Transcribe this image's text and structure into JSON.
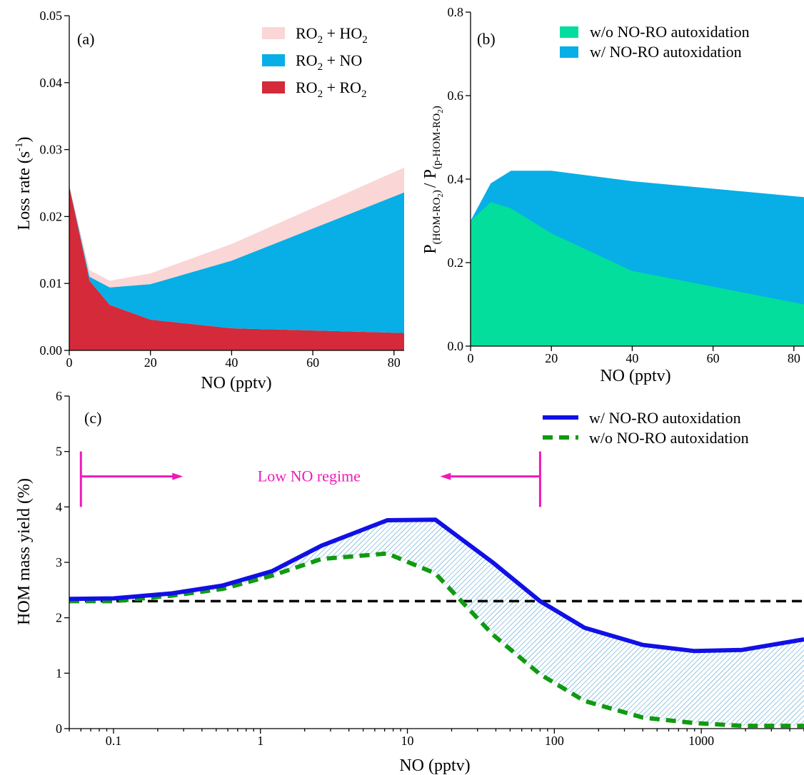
{
  "chart_data": [
    {
      "panel": "(a)",
      "type": "area",
      "stacked": true,
      "xlabel": "NO (pptv)",
      "ylabel": "Loss rate (s",
      "ylabel_sup": "-1",
      "ylabel_close": ")",
      "xlim": [
        0,
        82.5
      ],
      "ylim": [
        0,
        0.05
      ],
      "xticks": [
        0,
        20,
        40,
        60,
        80
      ],
      "xtick_labels": [
        "0",
        "20",
        "40",
        "60",
        "80"
      ],
      "yticks": [
        0,
        0.01,
        0.02,
        0.03,
        0.04,
        0.05
      ],
      "ytick_labels": [
        "0.00",
        "0.01",
        "0.02",
        "0.03",
        "0.04",
        "0.05"
      ],
      "x": [
        0,
        5,
        10,
        20,
        40,
        82.5
      ],
      "series": [
        {
          "name": "RO2 + RO2",
          "label_main": "RO",
          "label_sub": "2",
          "label_mid": " + RO",
          "label_sub2": "2",
          "color": "#d42a3a",
          "values": [
            0.0245,
            0.0104,
            0.0068,
            0.0046,
            0.0033,
            0.0026
          ]
        },
        {
          "name": "RO2 + NO",
          "label_main": "RO",
          "label_sub": "2",
          "label_mid": " + NO",
          "label_sub2": "",
          "color": "#07afe6",
          "values": [
            0.0001,
            0.0006,
            0.0026,
            0.0053,
            0.0101,
            0.021
          ]
        },
        {
          "name": "RO2 + HO2",
          "label_main": "RO",
          "label_sub": "2",
          "label_mid": " + HO",
          "label_sub2": "2",
          "color": "#fbd6d6",
          "values": [
            0.0,
            0.001,
            0.001,
            0.0016,
            0.0025,
            0.0037
          ]
        }
      ],
      "legend_order": [
        2,
        1,
        0
      ],
      "legend": "top-right"
    },
    {
      "panel": "(b)",
      "type": "area",
      "stacked": false,
      "xlabel": "NO (pptv)",
      "ylabel_parts": [
        "P",
        "(HOM-RO",
        "2",
        ")",
        "/ P",
        "(p-HOM-RO",
        "2",
        ")"
      ],
      "xlim": [
        0,
        82.5
      ],
      "ylim": [
        0,
        0.8
      ],
      "xticks": [
        0,
        20,
        40,
        60,
        80
      ],
      "xtick_labels": [
        "0",
        "20",
        "40",
        "60",
        "80"
      ],
      "yticks": [
        0,
        0.2,
        0.4,
        0.6,
        0.8
      ],
      "ytick_labels": [
        "0.0",
        "0.2",
        "0.4",
        "0.6",
        "0.8"
      ],
      "x": [
        0,
        5,
        10,
        20,
        40,
        82.5
      ],
      "series": [
        {
          "name": "w/ NO-RO autoxidation",
          "color": "#07afe6",
          "values": [
            0.3,
            0.39,
            0.42,
            0.42,
            0.395,
            0.357
          ]
        },
        {
          "name": "w/o NO-RO autoxidation",
          "color": "#03de9c",
          "values": [
            0.3,
            0.345,
            0.33,
            0.27,
            0.18,
            0.1
          ]
        }
      ],
      "legend_order": [
        1,
        0
      ],
      "legend": "top-right"
    },
    {
      "panel": "(c)",
      "type": "line",
      "xscale": "log",
      "xlabel": "NO (pptv)",
      "ylabel": "HOM mass yield (%)",
      "xlim": [
        0.05,
        5000
      ],
      "ylim": [
        0,
        6
      ],
      "xticks": [
        0.1,
        1,
        10,
        100,
        1000
      ],
      "xtick_labels": [
        "0.1",
        "1",
        "10",
        "100",
        "1000"
      ],
      "yticks": [
        0,
        1,
        2,
        3,
        4,
        5,
        6
      ],
      "ytick_labels": [
        "0",
        "1",
        "2",
        "3",
        "4",
        "5",
        "6"
      ],
      "series": [
        {
          "name": "w/ NO-RO autoxidation",
          "color": "#1010e6",
          "style": "solid",
          "x": [
            0.05,
            0.1,
            0.25,
            0.55,
            1.2,
            2.6,
            7.3,
            15.5,
            38,
            80,
            160,
            400,
            900,
            1900,
            5000
          ],
          "values": [
            2.34,
            2.35,
            2.44,
            2.58,
            2.84,
            3.3,
            3.76,
            3.77,
            3.0,
            2.3,
            1.82,
            1.51,
            1.4,
            1.42,
            1.61
          ]
        },
        {
          "name": "w/o NO-RO autoxidation",
          "color": "#109a10",
          "style": "dashed",
          "x": [
            0.05,
            0.1,
            0.25,
            0.55,
            1.2,
            2.6,
            7.3,
            15.5,
            38,
            80,
            160,
            400,
            900,
            1900,
            5000
          ],
          "values": [
            2.3,
            2.3,
            2.4,
            2.52,
            2.76,
            3.06,
            3.16,
            2.8,
            1.7,
            0.98,
            0.5,
            0.2,
            0.1,
            0.05,
            0.05
          ]
        }
      ],
      "reference_line": {
        "y": 2.3,
        "color": "#000000",
        "style": "dashed"
      },
      "regime": {
        "label": "Low NO regime",
        "x_start": 0.06,
        "x_end": 80,
        "color": "#f01ab8",
        "y": 4.55
      },
      "legend": "top-right"
    }
  ]
}
